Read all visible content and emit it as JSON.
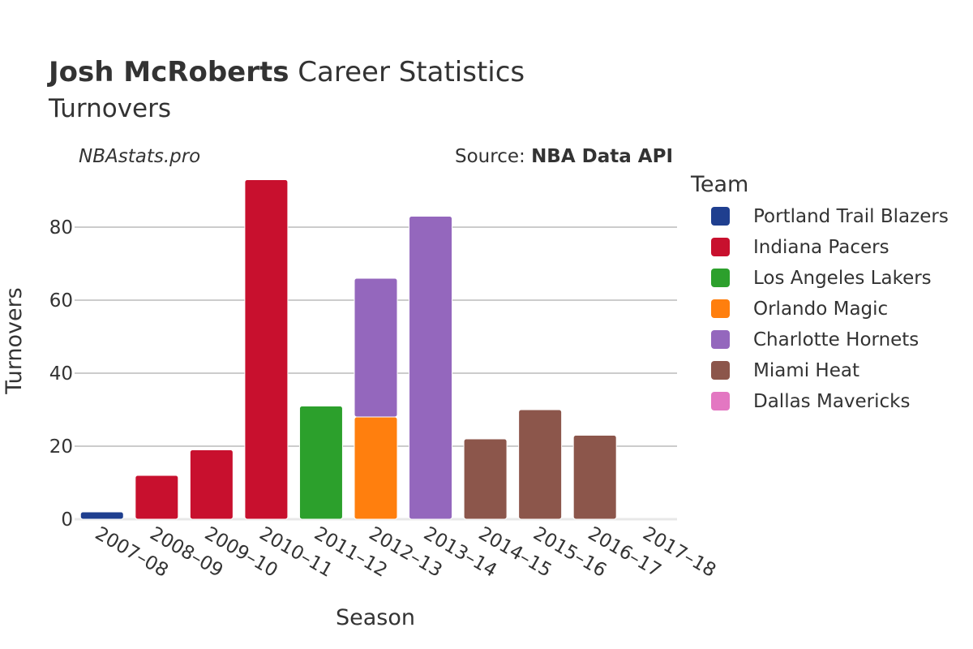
{
  "header": {
    "title_bold": "Josh McRoberts",
    "title_rest": "Career Statistics",
    "subtitle": "Turnovers",
    "site": "NBAstats.pro",
    "source_prefix": "Source:",
    "source_name": "NBA Data API"
  },
  "legend": {
    "title": "Team",
    "items": [
      {
        "label": "Portland Trail Blazers",
        "color": "#1f3f8f"
      },
      {
        "label": "Indiana Pacers",
        "color": "#c8102e"
      },
      {
        "label": "Los Angeles Lakers",
        "color": "#2ca02c"
      },
      {
        "label": "Orlando Magic",
        "color": "#ff7f0e"
      },
      {
        "label": "Charlotte Hornets",
        "color": "#9467bd"
      },
      {
        "label": "Miami Heat",
        "color": "#8c564b"
      },
      {
        "label": "Dallas Mavericks",
        "color": "#e377c2"
      }
    ]
  },
  "chart_data": {
    "type": "bar",
    "stacked": true,
    "xlabel": "Season",
    "ylabel": "Turnovers",
    "ylim": [
      0,
      95
    ],
    "yticks": [
      0,
      20,
      40,
      60,
      80
    ],
    "grid": true,
    "legend_position": "right",
    "categories": [
      "2007–08",
      "2008–09",
      "2009–10",
      "2010–11",
      "2011–12",
      "2012–13",
      "2013–14",
      "2014–15",
      "2015–16",
      "2016–17",
      "2017–18"
    ],
    "series": [
      {
        "name": "Portland Trail Blazers",
        "color": "#1f3f8f",
        "values": [
          2,
          0,
          0,
          0,
          0,
          0,
          0,
          0,
          0,
          0,
          0
        ]
      },
      {
        "name": "Indiana Pacers",
        "color": "#c8102e",
        "values": [
          0,
          12,
          19,
          93,
          0,
          0,
          0,
          0,
          0,
          0,
          0
        ]
      },
      {
        "name": "Los Angeles Lakers",
        "color": "#2ca02c",
        "values": [
          0,
          0,
          0,
          0,
          31,
          0,
          0,
          0,
          0,
          0,
          0
        ]
      },
      {
        "name": "Orlando Magic",
        "color": "#ff7f0e",
        "values": [
          0,
          0,
          0,
          0,
          0,
          28,
          0,
          0,
          0,
          0,
          0
        ]
      },
      {
        "name": "Charlotte Hornets",
        "color": "#9467bd",
        "values": [
          0,
          0,
          0,
          0,
          0,
          38,
          83,
          0,
          0,
          0,
          0
        ]
      },
      {
        "name": "Miami Heat",
        "color": "#8c564b",
        "values": [
          0,
          0,
          0,
          0,
          0,
          0,
          0,
          22,
          30,
          23,
          0
        ]
      },
      {
        "name": "Dallas Mavericks",
        "color": "#e377c2",
        "values": [
          0,
          0,
          0,
          0,
          0,
          0,
          0,
          0,
          0,
          0,
          0
        ]
      }
    ]
  }
}
